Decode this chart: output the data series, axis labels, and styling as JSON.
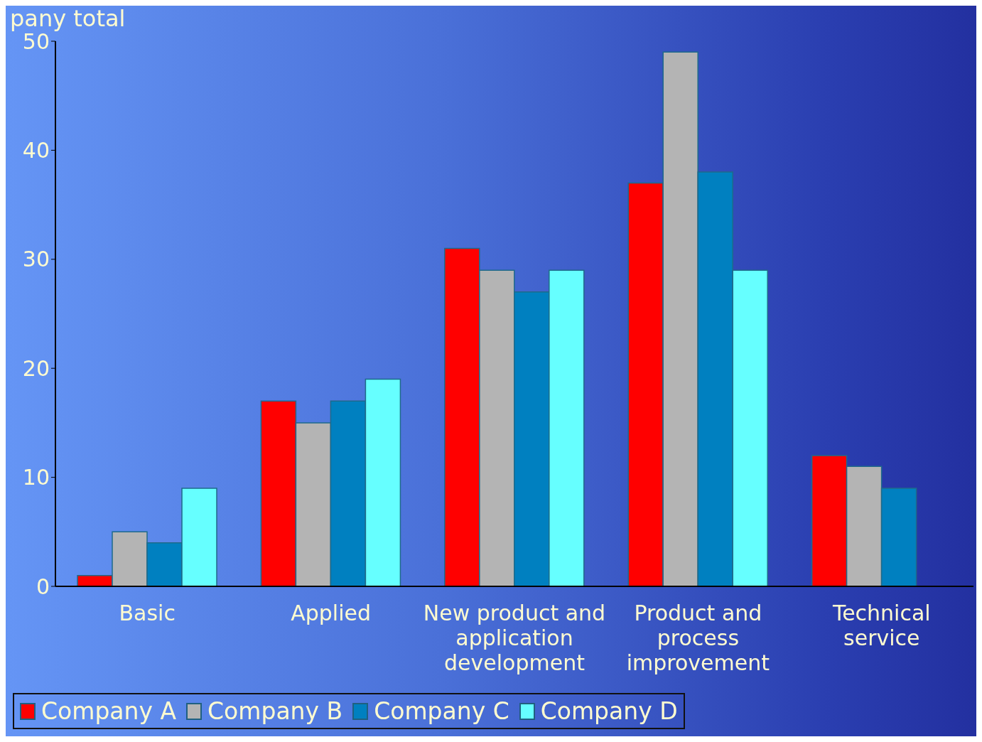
{
  "chart_data": {
    "type": "bar",
    "title": "pany total",
    "categories": [
      "Basic",
      "Applied",
      "New product and application development",
      "Product and process improvement",
      "Technical service"
    ],
    "series": [
      {
        "name": "Company A",
        "color": "#ff0000",
        "values": [
          1,
          17,
          31,
          37,
          12
        ]
      },
      {
        "name": "Company B",
        "color": "#b4b4b4",
        "values": [
          5,
          15,
          29,
          49,
          11
        ]
      },
      {
        "name": "Company C",
        "color": "#0080c0",
        "values": [
          4,
          17,
          27,
          38,
          9
        ]
      },
      {
        "name": "Company D",
        "color": "#66ffff",
        "values": [
          9,
          19,
          29,
          29,
          null
        ]
      }
    ],
    "ylim": [
      0,
      50
    ],
    "yticks": [
      0,
      10,
      20,
      30,
      40,
      50
    ],
    "grid": false,
    "legend": "bottom"
  }
}
